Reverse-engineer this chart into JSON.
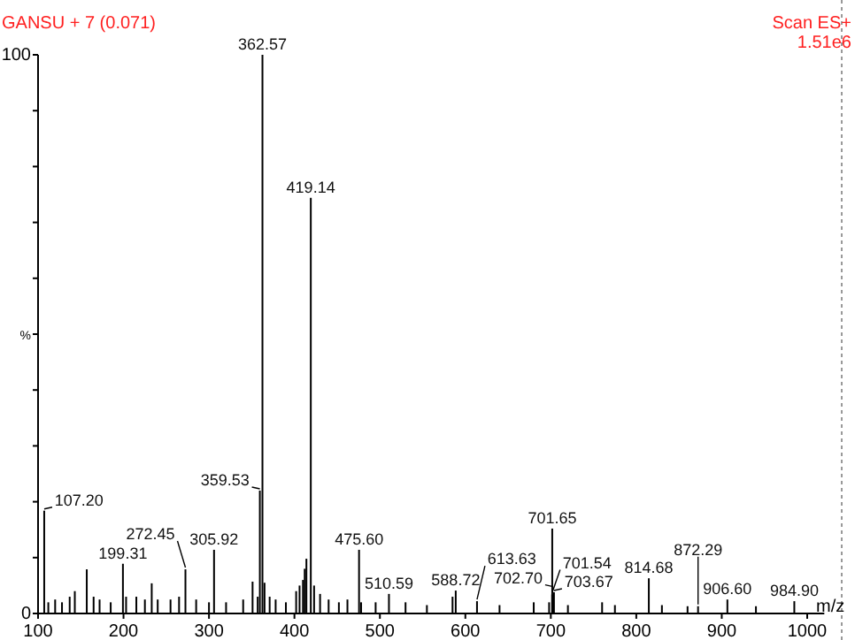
{
  "chart_data": {
    "type": "bar",
    "title": "GANSU + 7 (0.071)",
    "xlabel": "m/z",
    "ylabel": "%",
    "annotations": [
      "Scan ES+",
      "1.51e6",
      {
        "text": "362.57",
        "x": 362.57,
        "y": 100
      },
      {
        "text": "419.14",
        "x": 419.14,
        "y": 74.4
      },
      {
        "text": "359.53",
        "x": 359.53,
        "y": 22
      },
      {
        "text": "107.20",
        "x": 107.2,
        "y": 18.4
      },
      {
        "text": "199.31",
        "x": 199.31,
        "y": 8.9
      },
      {
        "text": "272.45",
        "x": 272.45,
        "y": 7.9
      },
      {
        "text": "305.92",
        "x": 305.92,
        "y": 11.4
      },
      {
        "text": "475.60",
        "x": 475.6,
        "y": 11.4
      },
      {
        "text": "510.59",
        "x": 510.59,
        "y": 3.5
      },
      {
        "text": "588.72",
        "x": 588.72,
        "y": 4.1
      },
      {
        "text": "613.63",
        "x": 613.63,
        "y": 2.2
      },
      {
        "text": "701.65",
        "x": 701.65,
        "y": 15.2
      },
      {
        "text": "701.54",
        "x": 701.54,
        "y": 3.4
      },
      {
        "text": "702.70",
        "x": 702.7,
        "y": 4.5
      },
      {
        "text": "703.67",
        "x": 703.67,
        "y": 3.8
      },
      {
        "text": "814.68",
        "x": 814.68,
        "y": 6.3
      },
      {
        "text": "872.29",
        "x": 872.29,
        "y": 1.3
      },
      {
        "text": "906.60",
        "x": 906.6,
        "y": 2.5
      },
      {
        "text": "984.90",
        "x": 984.9,
        "y": 2.2
      }
    ],
    "x": [
      107.2,
      112,
      120,
      128,
      137,
      143,
      157,
      165,
      172,
      185,
      199.31,
      203,
      215,
      225,
      233,
      240,
      255,
      265,
      272.45,
      285,
      300,
      305.92,
      320,
      340,
      351,
      357,
      359.53,
      362.57,
      365,
      371,
      378,
      390,
      402,
      406,
      410,
      412,
      414,
      419.14,
      423,
      430,
      440,
      452,
      462,
      475.6,
      478,
      495,
      510.59,
      530,
      555,
      585,
      588.72,
      613.63,
      640,
      680,
      698,
      701.54,
      701.65,
      702.7,
      703.67,
      720,
      760,
      775,
      814.68,
      830,
      860,
      872.29,
      906.6,
      940,
      984.9
    ],
    "values": [
      18.4,
      2,
      2.5,
      2,
      3,
      4,
      7.9,
      3,
      2.5,
      2,
      8.9,
      3,
      3,
      2.5,
      5.4,
      2.5,
      2.5,
      3,
      7.9,
      2.5,
      2,
      11.4,
      2,
      2.5,
      5.7,
      3,
      22,
      100,
      5.5,
      3,
      2.5,
      2,
      4,
      5,
      6,
      8,
      9.8,
      74.4,
      5,
      3.5,
      2.5,
      2,
      2.5,
      11.4,
      2,
      2,
      3.5,
      2,
      1.5,
      3,
      4.1,
      2.2,
      1.5,
      2,
      2,
      3.4,
      15.2,
      null,
      3.8,
      1.5,
      2,
      1.5,
      6.3,
      1.5,
      1.3,
      1.3,
      2.5,
      1.3,
      2.2
    ],
    "color": "#000000",
    "xlim": [
      100,
      1020
    ],
    "xticks": [
      100,
      200,
      300,
      400,
      500,
      600,
      700,
      800,
      900,
      1000
    ],
    "ylim": [
      0,
      100
    ],
    "yticks": [
      0,
      {
        "value": 10,
        "label": null
      },
      {
        "value": 20,
        "label": null
      },
      {
        "value": 30,
        "label": null
      },
      {
        "value": 40,
        "label": null
      },
      {
        "value": 50,
        "label": null
      },
      {
        "value": 60,
        "label": null
      },
      {
        "value": 70,
        "label": null
      },
      {
        "value": 80,
        "label": null
      },
      {
        "value": 90,
        "label": null
      },
      100
    ],
    "grid": false
  }
}
